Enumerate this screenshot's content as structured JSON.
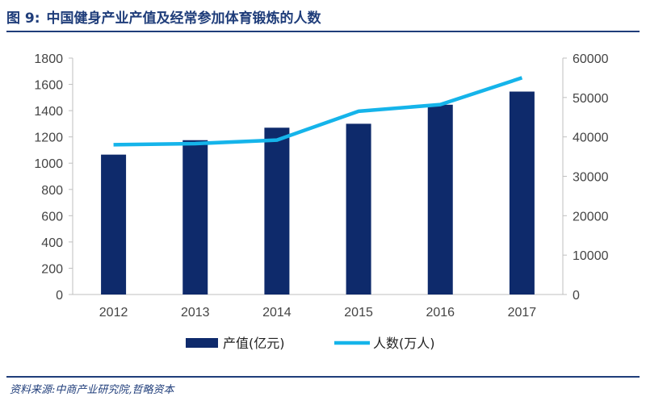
{
  "figure": {
    "label": "图 9:",
    "title": "中国健身产业产值及经常参加体育锻炼的人数"
  },
  "source": "资料来源:中商产业研究院,哲略资本",
  "colors": {
    "accent": "#1f3d7a",
    "bar": "#0e2a6b",
    "line": "#15b4ea",
    "axis": "#bfbfbf"
  },
  "chart_data": {
    "type": "bar",
    "categories": [
      "2012",
      "2013",
      "2014",
      "2015",
      "2016",
      "2017"
    ],
    "series": [
      {
        "name": "产值(亿元)",
        "type": "bar",
        "axis": "left",
        "values": [
          1065,
          1175,
          1270,
          1300,
          1445,
          1545
        ]
      },
      {
        "name": "人数(万人)",
        "type": "line",
        "axis": "right",
        "values": [
          38000,
          38300,
          39200,
          46500,
          48200,
          55000
        ]
      }
    ],
    "y_left": {
      "min": 0,
      "max": 1800,
      "ticks": [
        "0",
        "200",
        "400",
        "600",
        "800",
        "1000",
        "1200",
        "1400",
        "1600",
        "1800"
      ]
    },
    "y_right": {
      "min": 0,
      "max": 60000,
      "ticks": [
        "0",
        "10000",
        "20000",
        "30000",
        "40000",
        "50000",
        "60000"
      ]
    },
    "grid": false,
    "legend": "bottom"
  }
}
